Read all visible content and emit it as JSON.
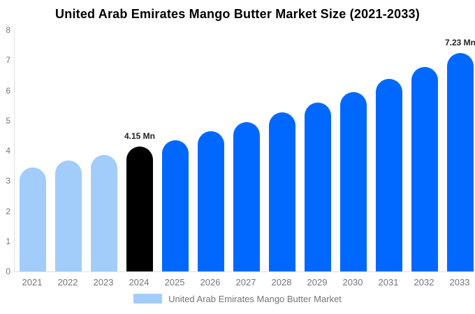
{
  "title": "United Arab Emirates Mango Butter Market Size (2021-2033)",
  "legend": {
    "label": "United Arab Emirates Mango Butter Market",
    "swatch_color": "#a2ccfa"
  },
  "colors": {
    "historical_bar": "#a2ccfa",
    "current_bar": "#000000",
    "forecast_bar": "#0068ff",
    "axis_line": "#e0e0e0",
    "axis_text": "#757575",
    "annotation_text": "#222222",
    "title_text": "#000000",
    "background": "#ffffff"
  },
  "chart_data": {
    "type": "bar",
    "title": "United Arab Emirates Mango Butter Market Size (2021-2033)",
    "categories": [
      "2021",
      "2022",
      "2023",
      "2024",
      "2025",
      "2026",
      "2027",
      "2028",
      "2029",
      "2030",
      "2031",
      "2032",
      "2033"
    ],
    "values": [
      3.45,
      3.67,
      3.87,
      4.15,
      4.35,
      4.65,
      4.95,
      5.27,
      5.6,
      5.95,
      6.37,
      6.77,
      7.23
    ],
    "bar_roles": [
      "historical",
      "historical",
      "historical",
      "current",
      "forecast",
      "forecast",
      "forecast",
      "forecast",
      "forecast",
      "forecast",
      "forecast",
      "forecast",
      "forecast"
    ],
    "value_labels": {
      "2024": "4.15 Mn",
      "2033": "7.23 Mn"
    },
    "unit": "Mn",
    "xlabel": "",
    "ylabel": "",
    "ylim": [
      0,
      8
    ],
    "y_ticks": [
      0,
      1,
      2,
      3,
      4,
      5,
      6,
      7,
      8
    ],
    "grid": false,
    "legend": [
      "United Arab Emirates Mango Butter Market"
    ],
    "legend_position": "bottom"
  }
}
